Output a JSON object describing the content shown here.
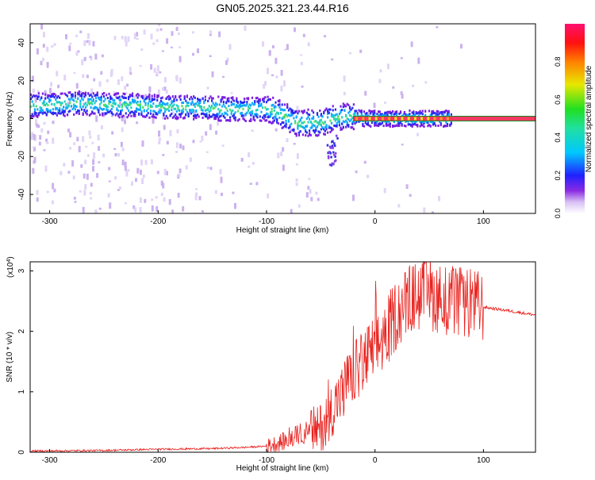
{
  "title": "GN05.2025.321.23.44.R16",
  "chart_data": [
    {
      "type": "heatmap",
      "name": "spectrogram",
      "xlabel": "Height of straight line (km)",
      "ylabel": "Frequency (Hz)",
      "xlim": [
        -318,
        148
      ],
      "ylim": [
        -50,
        50
      ],
      "xticks": [
        -300,
        -200,
        -100,
        0,
        100
      ],
      "xtick_labels": [
        "-300",
        "-200",
        "-100",
        "0",
        "100"
      ],
      "yticks": [
        -40,
        -20,
        0,
        20,
        40
      ],
      "ytick_labels": [
        "-40",
        "-20",
        "0",
        "20",
        "40"
      ],
      "ridge": {
        "x": [
          -318,
          -300,
          -280,
          -260,
          -240,
          -220,
          -200,
          -180,
          -160,
          -140,
          -120,
          -100,
          -90,
          -80,
          -70,
          -60,
          -50,
          -40,
          -30,
          -20,
          -10,
          0,
          20,
          40,
          60,
          70,
          90,
          148
        ],
        "y": [
          7,
          7,
          8,
          8,
          7,
          7,
          6,
          6,
          6,
          5,
          5,
          5,
          3,
          0,
          -3,
          -2,
          -2,
          0,
          1,
          1,
          0,
          0,
          0,
          0,
          0,
          0,
          0,
          0
        ]
      },
      "reference_line_hz": 0,
      "colorbar": {
        "label": "Normalized spectral amplitude",
        "range": [
          0,
          1
        ],
        "ticks": [
          0.0,
          0.2,
          0.4,
          0.6,
          0.8
        ],
        "tick_labels": [
          "0.0",
          "0.2",
          "0.4",
          "0.6",
          "0.8"
        ]
      }
    },
    {
      "type": "line",
      "name": "snr",
      "xlabel": "Height of straight line (km)",
      "ylabel": "SNR (10 * v/v)",
      "y_multiplier": "(x10",
      "y_multiplier_exp": "4",
      "y_multiplier_close": ")",
      "xlim": [
        -318,
        148
      ],
      "ylim": [
        0,
        3.15
      ],
      "xticks": [
        -300,
        -200,
        -100,
        0,
        100
      ],
      "xtick_labels": [
        "-300",
        "-200",
        "-100",
        "0",
        "100"
      ],
      "yticks": [
        0,
        1,
        2,
        3
      ],
      "ytick_labels": [
        "0",
        "1",
        "2",
        "3"
      ],
      "color": "#e8231f",
      "envelope": {
        "x": [
          -318,
          -250,
          -200,
          -150,
          -120,
          -100,
          -80,
          -70,
          -60,
          -50,
          -40,
          -30,
          -20,
          -10,
          0,
          10,
          20,
          30,
          40,
          50,
          60,
          70,
          80,
          90,
          100,
          120,
          148
        ],
        "y": [
          0.02,
          0.03,
          0.05,
          0.06,
          0.08,
          0.1,
          0.2,
          0.3,
          0.35,
          0.4,
          0.7,
          1.0,
          1.3,
          1.5,
          1.7,
          1.95,
          2.3,
          2.5,
          2.6,
          2.6,
          2.55,
          2.5,
          2.45,
          2.45,
          2.4,
          2.35,
          2.27
        ]
      }
    }
  ]
}
